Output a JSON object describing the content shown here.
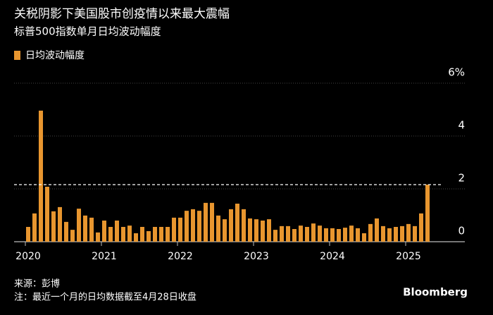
{
  "chart_data": {
    "type": "bar",
    "title": "关税阴影下美国股市创疫情以来最大震幅",
    "subtitle": "标普500指数单月日均波动幅度",
    "legend": "日均波动幅度",
    "color": "#e8962f",
    "categories": [
      "2020",
      null,
      null,
      null,
      null,
      null,
      null,
      null,
      null,
      null,
      null,
      null,
      "2021",
      null,
      null,
      null,
      null,
      null,
      null,
      null,
      null,
      null,
      null,
      null,
      "2022",
      null,
      null,
      null,
      null,
      null,
      null,
      null,
      null,
      null,
      null,
      null,
      "2023",
      null,
      null,
      null,
      null,
      null,
      null,
      null,
      null,
      null,
      null,
      null,
      "2024",
      null,
      null,
      null,
      null,
      null,
      null,
      null,
      null,
      null,
      null,
      null,
      "2025",
      null,
      null,
      null
    ],
    "values": [
      0.56,
      1.07,
      4.96,
      2.08,
      1.15,
      1.31,
      0.75,
      0.45,
      1.25,
      0.99,
      0.91,
      0.35,
      0.8,
      0.56,
      0.8,
      0.56,
      0.61,
      0.32,
      0.56,
      0.4,
      0.56,
      0.56,
      0.56,
      0.91,
      0.91,
      1.17,
      1.23,
      1.17,
      1.47,
      1.47,
      0.99,
      0.85,
      1.23,
      1.44,
      1.23,
      0.88,
      0.85,
      0.8,
      0.85,
      0.45,
      0.59,
      0.59,
      0.48,
      0.61,
      0.56,
      0.69,
      0.61,
      0.51,
      0.51,
      0.48,
      0.53,
      0.61,
      0.51,
      0.32,
      0.67,
      0.88,
      0.59,
      0.51,
      0.56,
      0.59,
      0.67,
      0.59,
      1.07,
      2.16
    ],
    "reference_line": 2.16,
    "ylim": [
      0,
      6
    ],
    "yticks": [
      0,
      2,
      4,
      {
        "value": 6,
        "label": "6%"
      }
    ],
    "grid": true,
    "source": "来源：彭博",
    "note": "注：最近一个月的日均数据截至4月28日收盘",
    "brand": "Bloomberg"
  }
}
